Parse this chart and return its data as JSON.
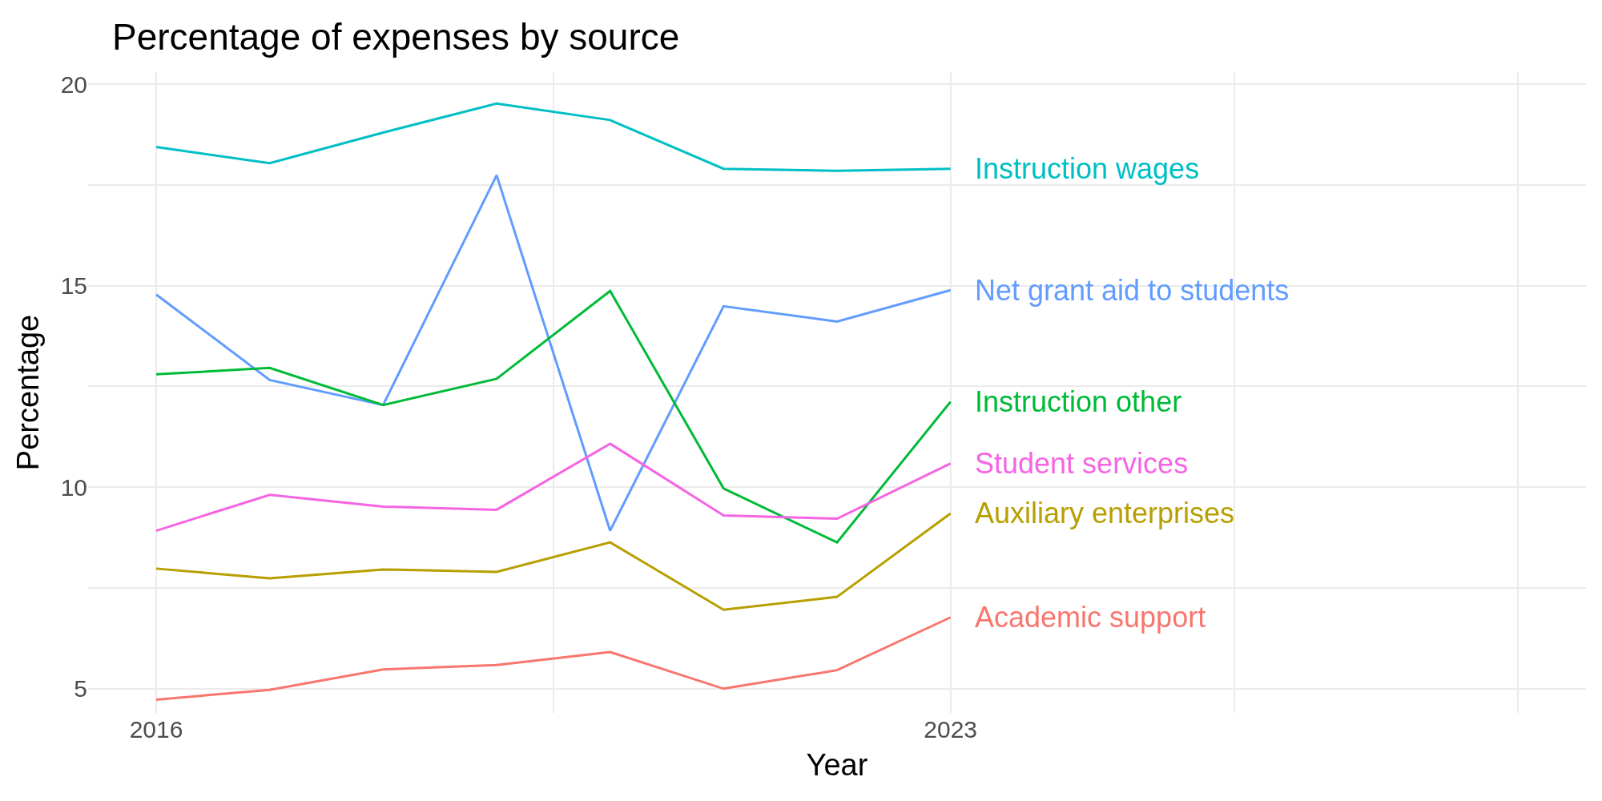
{
  "chart_data": {
    "type": "line",
    "title": "Percentage of expenses by source",
    "xlabel": "Year",
    "ylabel": "Percentage",
    "x": [
      2016,
      2017,
      2018,
      2019,
      2020,
      2021,
      2022,
      2023
    ],
    "series": [
      {
        "name": "Instruction wages",
        "color": "#00bfc4",
        "values": [
          18.44,
          18.04,
          18.8,
          19.52,
          19.11,
          17.9,
          17.85,
          17.9
        ]
      },
      {
        "name": "Net grant aid to students",
        "color": "#619cff",
        "values": [
          14.78,
          12.66,
          12.04,
          17.74,
          8.92,
          14.49,
          14.11,
          14.89
        ]
      },
      {
        "name": "Instruction other",
        "color": "#00ba38",
        "values": [
          12.8,
          12.96,
          12.04,
          12.69,
          14.87,
          9.97,
          8.63,
          12.12
        ]
      },
      {
        "name": "Student services",
        "color": "#f564e3",
        "values": [
          8.92,
          9.81,
          9.52,
          9.44,
          11.08,
          9.3,
          9.22,
          10.59
        ]
      },
      {
        "name": "Auxiliary enterprises",
        "color": "#b79f00",
        "values": [
          7.98,
          7.74,
          7.96,
          7.9,
          8.63,
          6.96,
          7.28,
          9.35
        ]
      },
      {
        "name": "Academic support",
        "color": "#f8766d",
        "values": [
          4.73,
          4.97,
          5.48,
          5.59,
          5.91,
          5.0,
          5.46,
          6.77
        ]
      }
    ],
    "xlim": [
      2015.4,
      2028.6
    ],
    "xticks": [
      2016,
      {
        "value": 2019.5,
        "label": null
      },
      2023,
      {
        "value": 2025.5,
        "label": null
      },
      {
        "value": 2028,
        "label": null
      }
    ],
    "ylim": [
      4.4,
      20.3
    ],
    "yticks": [
      5,
      {
        "value": 7.5,
        "label": null
      },
      10,
      {
        "value": 12.5,
        "label": null
      },
      15,
      {
        "value": 17.5,
        "label": null
      },
      20
    ],
    "grid": true,
    "legend": false,
    "line_style": "solid",
    "marker": "none"
  }
}
